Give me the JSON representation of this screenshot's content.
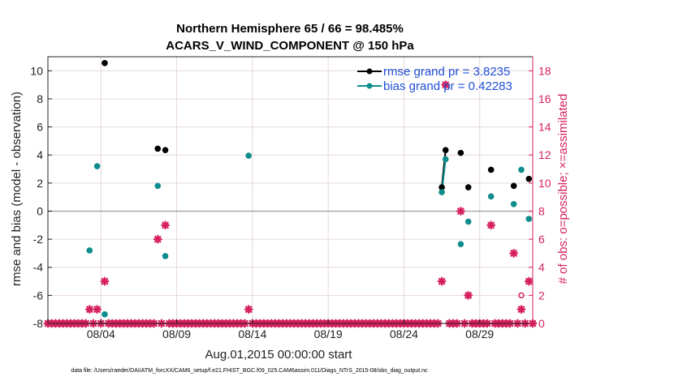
{
  "chart_data": {
    "type": "scatter",
    "title_line1": "Northern Hemisphere 65 / 66 = 98.485%",
    "title_line2": "ACARS_V_WIND_COMPONENT @ 150 hPa",
    "xlabel": "Aug.01,2015 00:00:00 start",
    "ylabel": "rmse and bias (model - observation)",
    "ylabel_right": "# of obs: o=possible; ×=assimilated",
    "footer": "data file: /Users/raeder/DAI/ATM_forcXX/CAM6_setup/f.e21.FHIST_BGC.f09_025.CAM6assim.011/Diags_NTrS_2015-08/obs_diag_output.nc",
    "xlim_days": [
      0,
      32
    ],
    "xticks": [
      {
        "day": 3.5,
        "label": "08/04"
      },
      {
        "day": 8.5,
        "label": "08/09"
      },
      {
        "day": 13.5,
        "label": "08/14"
      },
      {
        "day": 18.5,
        "label": "08/19"
      },
      {
        "day": 23.5,
        "label": "08/24"
      },
      {
        "day": 28.5,
        "label": "08/29"
      }
    ],
    "ylim": [
      -8,
      11
    ],
    "yticks": [
      -8,
      -6,
      -4,
      -2,
      0,
      2,
      4,
      6,
      8,
      10
    ],
    "ylim_right": [
      0,
      19
    ],
    "yticks_right": [
      0,
      2,
      4,
      6,
      8,
      10,
      12,
      14,
      16,
      18
    ],
    "grid": true,
    "legend_position": "top-right",
    "colors": {
      "rmse": "#000000",
      "bias": "#0f8c8c",
      "obs": "#d6215e",
      "zero_line": "#aaaaaa",
      "grid": "#e6d6dc"
    },
    "series": [
      {
        "name": "rmse grand pr = 3.8235",
        "color": "#000000",
        "points": [
          {
            "x": 3.75,
            "y": 10.55
          },
          {
            "x": 7.25,
            "y": 4.45
          },
          {
            "x": 7.75,
            "y": 4.35
          },
          {
            "x": 26.0,
            "y": 1.7
          },
          {
            "x": 26.25,
            "y": 4.35
          },
          {
            "x": 27.25,
            "y": 4.15
          },
          {
            "x": 27.75,
            "y": 1.7
          },
          {
            "x": 29.25,
            "y": 2.95
          },
          {
            "x": 30.75,
            "y": 1.8
          },
          {
            "x": 31.75,
            "y": 2.3
          }
        ],
        "line_segments": [
          [
            26.0,
            26.25
          ]
        ]
      },
      {
        "name": "bias grand pr = 0.42283",
        "color": "#0f8c8c",
        "points": [
          {
            "x": 2.75,
            "y": -2.8
          },
          {
            "x": 3.25,
            "y": 3.2
          },
          {
            "x": 3.75,
            "y": -7.35
          },
          {
            "x": 7.25,
            "y": 1.8
          },
          {
            "x": 7.75,
            "y": -3.2
          },
          {
            "x": 13.25,
            "y": 3.95
          },
          {
            "x": 26.0,
            "y": 1.35
          },
          {
            "x": 26.25,
            "y": 3.7
          },
          {
            "x": 27.25,
            "y": -2.35
          },
          {
            "x": 27.75,
            "y": -0.75
          },
          {
            "x": 29.25,
            "y": 1.05
          },
          {
            "x": 30.75,
            "y": 0.5
          },
          {
            "x": 31.25,
            "y": 2.95
          },
          {
            "x": 31.75,
            "y": -0.55
          }
        ],
        "line_segments": [
          [
            26.0,
            26.25
          ]
        ]
      },
      {
        "name": "",
        "color": "#d6215e",
        "marker": "asterisk",
        "axis": "right",
        "elevated_points": [
          {
            "x": 2.75,
            "y": 1
          },
          {
            "x": 3.25,
            "y": 1
          },
          {
            "x": 3.75,
            "y": 3
          },
          {
            "x": 7.25,
            "y": 6
          },
          {
            "x": 7.75,
            "y": 7
          },
          {
            "x": 13.25,
            "y": 1
          },
          {
            "x": 26.0,
            "y": 3
          },
          {
            "x": 26.25,
            "y": 17
          },
          {
            "x": 27.25,
            "y": 8
          },
          {
            "x": 27.75,
            "y": 2
          },
          {
            "x": 29.25,
            "y": 7
          },
          {
            "x": 30.75,
            "y": 5
          },
          {
            "x": 31.25,
            "y": 1
          },
          {
            "x": 31.75,
            "y": 3
          }
        ],
        "zero_day_range": [
          0,
          32
        ],
        "zero_spacing_days": 0.25
      }
    ],
    "possible_only_points": [
      {
        "x": 31.25,
        "y": 2
      }
    ]
  }
}
